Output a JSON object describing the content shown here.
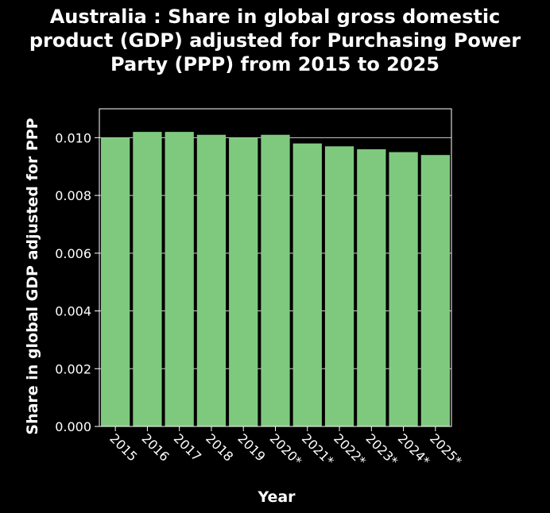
{
  "chart_data": {
    "type": "bar",
    "title_lines": [
      "Australia : Share in global gross domestic",
      "product (GDP) adjusted for Purchasing Power",
      "Party (PPP) from 2015 to 2025"
    ],
    "xlabel": "Year",
    "ylabel": "Share in global GDP adjusted for PPP",
    "categories": [
      "2015",
      "2016",
      "2017",
      "2018",
      "2019",
      "2020*",
      "2021*",
      "2022*",
      "2023*",
      "2024*",
      "2025*"
    ],
    "values": [
      0.01,
      0.0102,
      0.0102,
      0.0101,
      0.01,
      0.0101,
      0.0098,
      0.0097,
      0.0096,
      0.0095,
      0.0094
    ],
    "ylim": [
      0,
      0.011
    ],
    "yticks": [
      "0.000",
      "0.002",
      "0.004",
      "0.006",
      "0.008",
      "0.010"
    ],
    "grid": true,
    "bar_color": "#7fc97f",
    "background": "#000000",
    "text_color": "#ffffff"
  }
}
